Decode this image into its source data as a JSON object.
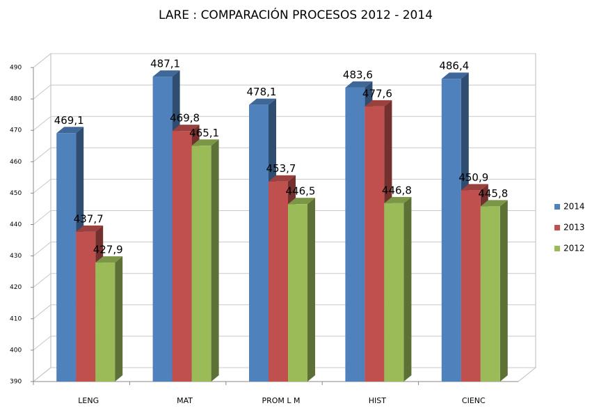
{
  "chart_data": {
    "type": "bar3d",
    "title": "LARE : COMPARACIÓN PROCESOS 2012 - 2014",
    "categories": [
      "LENG",
      "MAT",
      "PROM  L M",
      "HIST",
      "CIENC"
    ],
    "series": [
      {
        "name": "2014",
        "color": "#4f81bd",
        "values": [
          469.1,
          487.1,
          478.1,
          483.6,
          486.4
        ],
        "value_labels": [
          "469,1",
          "487,1",
          "478,1",
          "483,6",
          "486,4"
        ]
      },
      {
        "name": "2013",
        "color": "#c0504d",
        "values": [
          437.7,
          469.8,
          453.7,
          477.6,
          450.9
        ],
        "value_labels": [
          "437,7",
          "469,8",
          "453,7",
          "477,6",
          "450,9"
        ]
      },
      {
        "name": "2012",
        "color": "#9bbb59",
        "values": [
          427.9,
          465.1,
          446.5,
          446.8,
          445.8
        ],
        "value_labels": [
          "427,9",
          "465,1",
          "446,5",
          "446,8",
          "445,8"
        ]
      }
    ],
    "ylim": [
      390,
      490
    ],
    "yticks": [
      390,
      400,
      410,
      420,
      430,
      440,
      450,
      460,
      470,
      480,
      490
    ],
    "grid": true,
    "legend": "right"
  }
}
